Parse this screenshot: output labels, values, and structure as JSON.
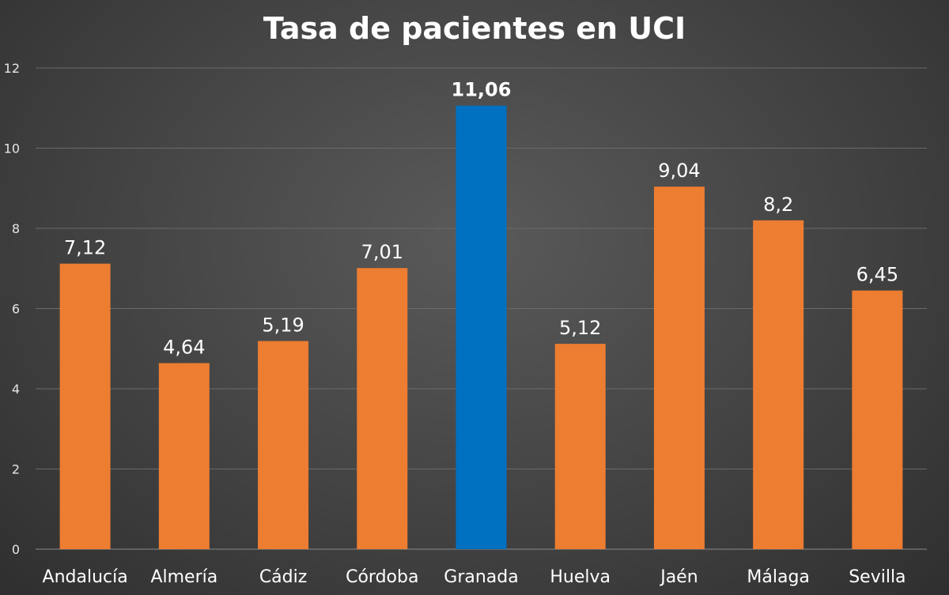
{
  "chart_data": {
    "type": "bar",
    "title": "Tasa de pacientes en UCI",
    "xlabel": "",
    "ylabel": "",
    "categories": [
      "Andalucía",
      "Almería",
      "Cádiz",
      "Córdoba",
      "Granada",
      "Huelva",
      "Jaén",
      "Málaga",
      "Sevilla"
    ],
    "values": [
      7.12,
      4.64,
      5.19,
      7.01,
      11.06,
      5.12,
      9.04,
      8.2,
      6.45
    ],
    "data_labels": [
      "7,12",
      "4,64",
      "5,19",
      "7,01",
      "11,06",
      "5,12",
      "9,04",
      "8,2",
      "6,45"
    ],
    "ylim": [
      0,
      12
    ],
    "yticks": [
      "0",
      "2",
      "4",
      "6",
      "8",
      "10",
      "12"
    ],
    "grid": true,
    "legend": "none",
    "highlight_index": 4,
    "colors": {
      "bar": "#ED7D31",
      "highlight": "#0070C0",
      "grid": "#6a6a6a",
      "background": "#404040"
    }
  }
}
